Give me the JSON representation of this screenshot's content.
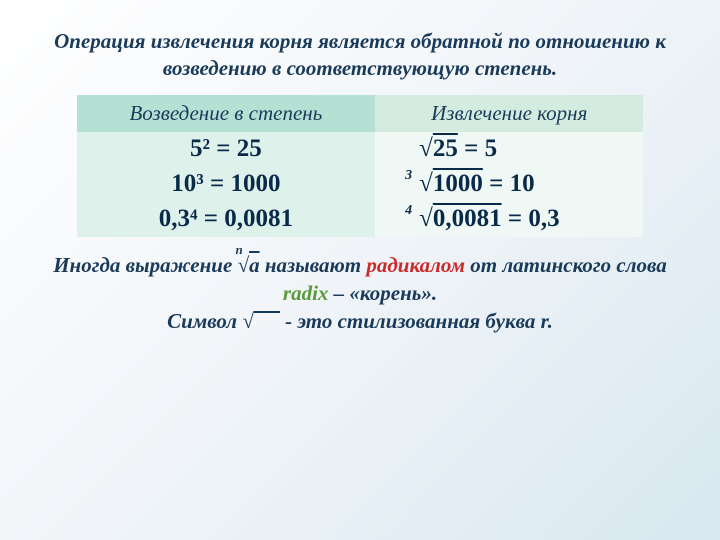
{
  "intro": "Операция извлечения корня является обратной по отношению к возведению в соответствующую степень.",
  "table": {
    "header_left": "Возведение в степень",
    "header_right": "Извлечение корня",
    "rows": [
      {
        "power": "5² = 25",
        "root_index": "",
        "radicand": "25",
        "root_result": " = 5"
      },
      {
        "power": "10³ = 1000",
        "root_index": "3",
        "radicand": "1000",
        "root_result": " = 10"
      },
      {
        "power": "0,3⁴ = 0,0081",
        "root_index": "4",
        "radicand": "0,0081",
        "root_result": " = 0,3"
      }
    ]
  },
  "body1_pre": "Иногда выражение ",
  "body1_root_index": "n",
  "body1_root_rad": "a",
  "body1_mid": " называют ",
  "body1_radical": "радикалом",
  "body1_mid2": " от латинского слова ",
  "body1_radix": "radix",
  "body1_end": " – «корень».",
  "body2_pre": "Символ ",
  "body2_end": " - это стилизованная буква r.",
  "colors": {
    "text_primary": "#1a3a5a",
    "text_dark": "#0a2a4a",
    "red": "#cc2a2a",
    "green": "#5a9a3a",
    "th_left_bg": "#b5e0d4",
    "th_right_bg": "#d4ecdf",
    "td_left_bg": "#dff1eb",
    "td_right_bg": "#eff8f4"
  },
  "fonts": {
    "intro_size": 21,
    "th_size": 21,
    "td_size": 25,
    "body_size": 21
  }
}
